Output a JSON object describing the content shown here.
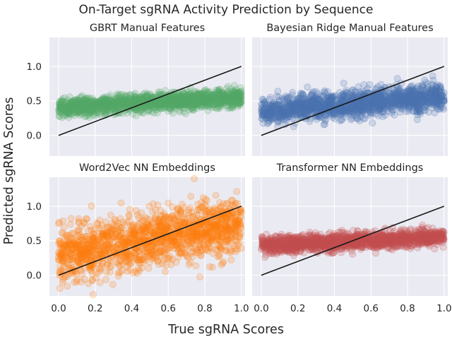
{
  "figure": {
    "title": "On-Target sgRNA Activity Prediction by Sequence",
    "xlabel": "True sgRNA Scores",
    "ylabel": "Predicted sgRNA Scores"
  },
  "chart_data": [
    {
      "type": "scatter",
      "title": "GBRT Manual Features",
      "color": "#55a868",
      "xlim": [
        -0.05,
        1.02
      ],
      "ylim": [
        -0.3,
        1.42
      ],
      "xticks": [],
      "yticks": [
        "0.0",
        "0.5",
        "1.0"
      ],
      "grid": true,
      "reference_line": {
        "x": [
          0,
          1
        ],
        "y": [
          0,
          1
        ],
        "color": "#1a1a1a"
      },
      "trend": {
        "intercept": 0.4,
        "slope": 0.15,
        "spread": 0.065
      },
      "n_points": 1500
    },
    {
      "type": "scatter",
      "title": "Bayesian Ridge Manual Features",
      "color": "#4c72b0",
      "xlim": [
        -0.05,
        1.02
      ],
      "ylim": [
        -0.3,
        1.42
      ],
      "xticks": [],
      "yticks": [],
      "grid": true,
      "reference_line": {
        "x": [
          0,
          1
        ],
        "y": [
          0,
          1
        ],
        "color": "#1a1a1a"
      },
      "trend": {
        "intercept": 0.35,
        "slope": 0.22,
        "spread": 0.1
      },
      "n_points": 1500
    },
    {
      "type": "scatter",
      "title": "Word2Vec NN Embeddings",
      "color": "#ff7f0e",
      "xlim": [
        -0.05,
        1.02
      ],
      "ylim": [
        -0.3,
        1.42
      ],
      "xticks": [
        "0.0",
        "0.2",
        "0.4",
        "0.6",
        "0.8",
        "1.0"
      ],
      "yticks": [
        "0.0",
        "0.5",
        "1.0"
      ],
      "grid": true,
      "reference_line": {
        "x": [
          0,
          1
        ],
        "y": [
          0,
          1
        ],
        "color": "#1a1a1a"
      },
      "trend": {
        "intercept": 0.3,
        "slope": 0.45,
        "spread": 0.2
      },
      "n_points": 1500
    },
    {
      "type": "scatter",
      "title": "Transformer NN Embeddings",
      "color": "#c44e52",
      "xlim": [
        -0.05,
        1.02
      ],
      "ylim": [
        -0.3,
        1.42
      ],
      "xticks": [
        "0.0",
        "0.2",
        "0.4",
        "0.6",
        "0.8",
        "1.0"
      ],
      "yticks": [],
      "grid": true,
      "reference_line": {
        "x": [
          0,
          1
        ],
        "y": [
          0,
          1
        ],
        "color": "#1a1a1a"
      },
      "trend": {
        "intercept": 0.43,
        "slope": 0.12,
        "spread": 0.06
      },
      "n_points": 1500
    }
  ]
}
